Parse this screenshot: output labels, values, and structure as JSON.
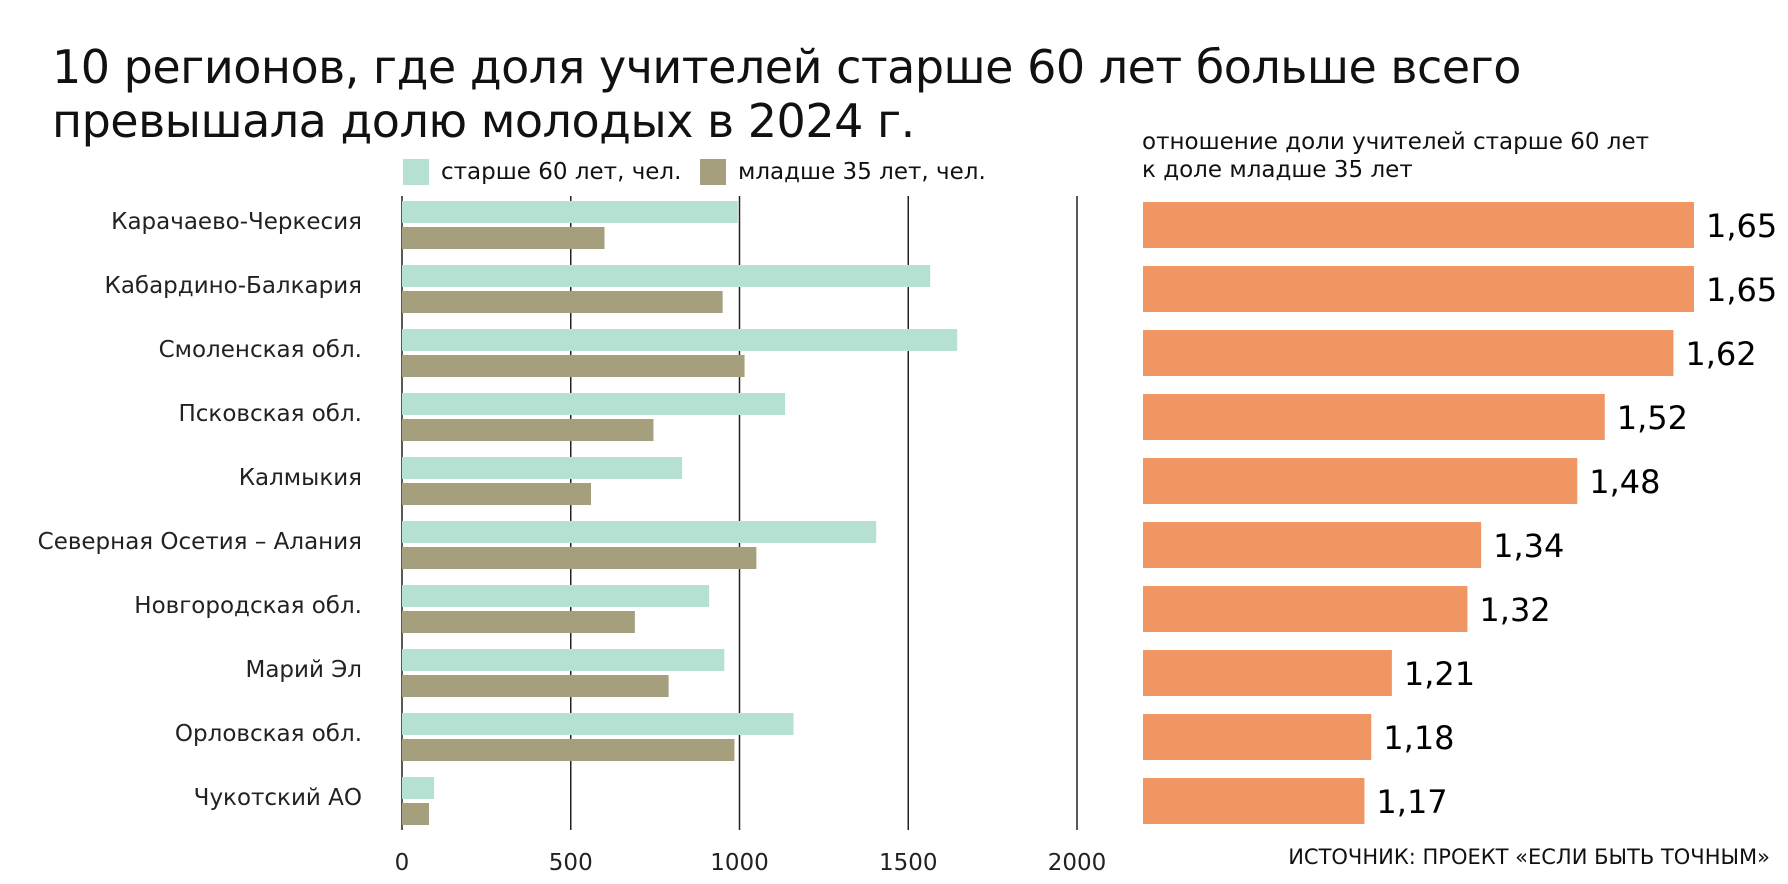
{
  "title": "10 регионов, где доля учителей старше 60 лет больше всего превышала долю молодых в 2024 г.",
  "source": "ИСТОЧНИК: ПРОЕКТ «ЕСЛИ БЫТЬ ТОЧНЫМ»",
  "colors": {
    "older": "#b6e0d2",
    "younger": "#a59f7e",
    "ratio": "#ef9663",
    "axis": "#222222"
  },
  "chart_data": [
    {
      "type": "bar",
      "orientation": "horizontal",
      "categories": [
        "Карачаево-Черкесия",
        "Кабардино-Балкария",
        "Смоленская обл.",
        "Псковская обл.",
        "Калмыкия",
        "Северная Осетия – Алания",
        "Новгородская обл.",
        "Марий Эл",
        "Орловская обл.",
        "Чукотский АО"
      ],
      "series": [
        {
          "name": "старше 60 лет, чел.",
          "values": [
            995,
            1565,
            1645,
            1135,
            830,
            1405,
            910,
            955,
            1160,
            95
          ]
        },
        {
          "name": "младше 35 лет, чел.",
          "values": [
            600,
            950,
            1015,
            745,
            560,
            1050,
            690,
            790,
            985,
            80
          ]
        }
      ],
      "xlim": [
        0,
        2000
      ],
      "xticks": [
        "0",
        "500",
        "1000",
        "1500",
        "2000"
      ],
      "xtick_values": [
        0,
        500,
        1000,
        1500,
        2000
      ],
      "grid": true,
      "legend": "top"
    },
    {
      "type": "bar",
      "orientation": "horizontal",
      "title": "отношение доли учителей старше 60 лет к доле младше 35 лет",
      "title_lines": [
        "отношение доли учителей старше 60 лет",
        "к доле младше 35 лет"
      ],
      "categories": [
        "Карачаево-Черкесия",
        "Кабардино-Балкария",
        "Смоленская обл.",
        "Псковская обл.",
        "Калмыкия",
        "Северная Осетия – Алания",
        "Новгородская обл.",
        "Марий Эл",
        "Орловская обл.",
        "Чукотский АО"
      ],
      "values": [
        1.65,
        1.65,
        1.62,
        1.52,
        1.48,
        1.34,
        1.32,
        1.21,
        1.18,
        1.17
      ],
      "labels": [
        "1,65",
        "1,65",
        "1,62",
        "1,52",
        "1,48",
        "1,34",
        "1,32",
        "1,21",
        "1,18",
        "1,17"
      ],
      "xlim": [
        0,
        1.65
      ]
    }
  ]
}
